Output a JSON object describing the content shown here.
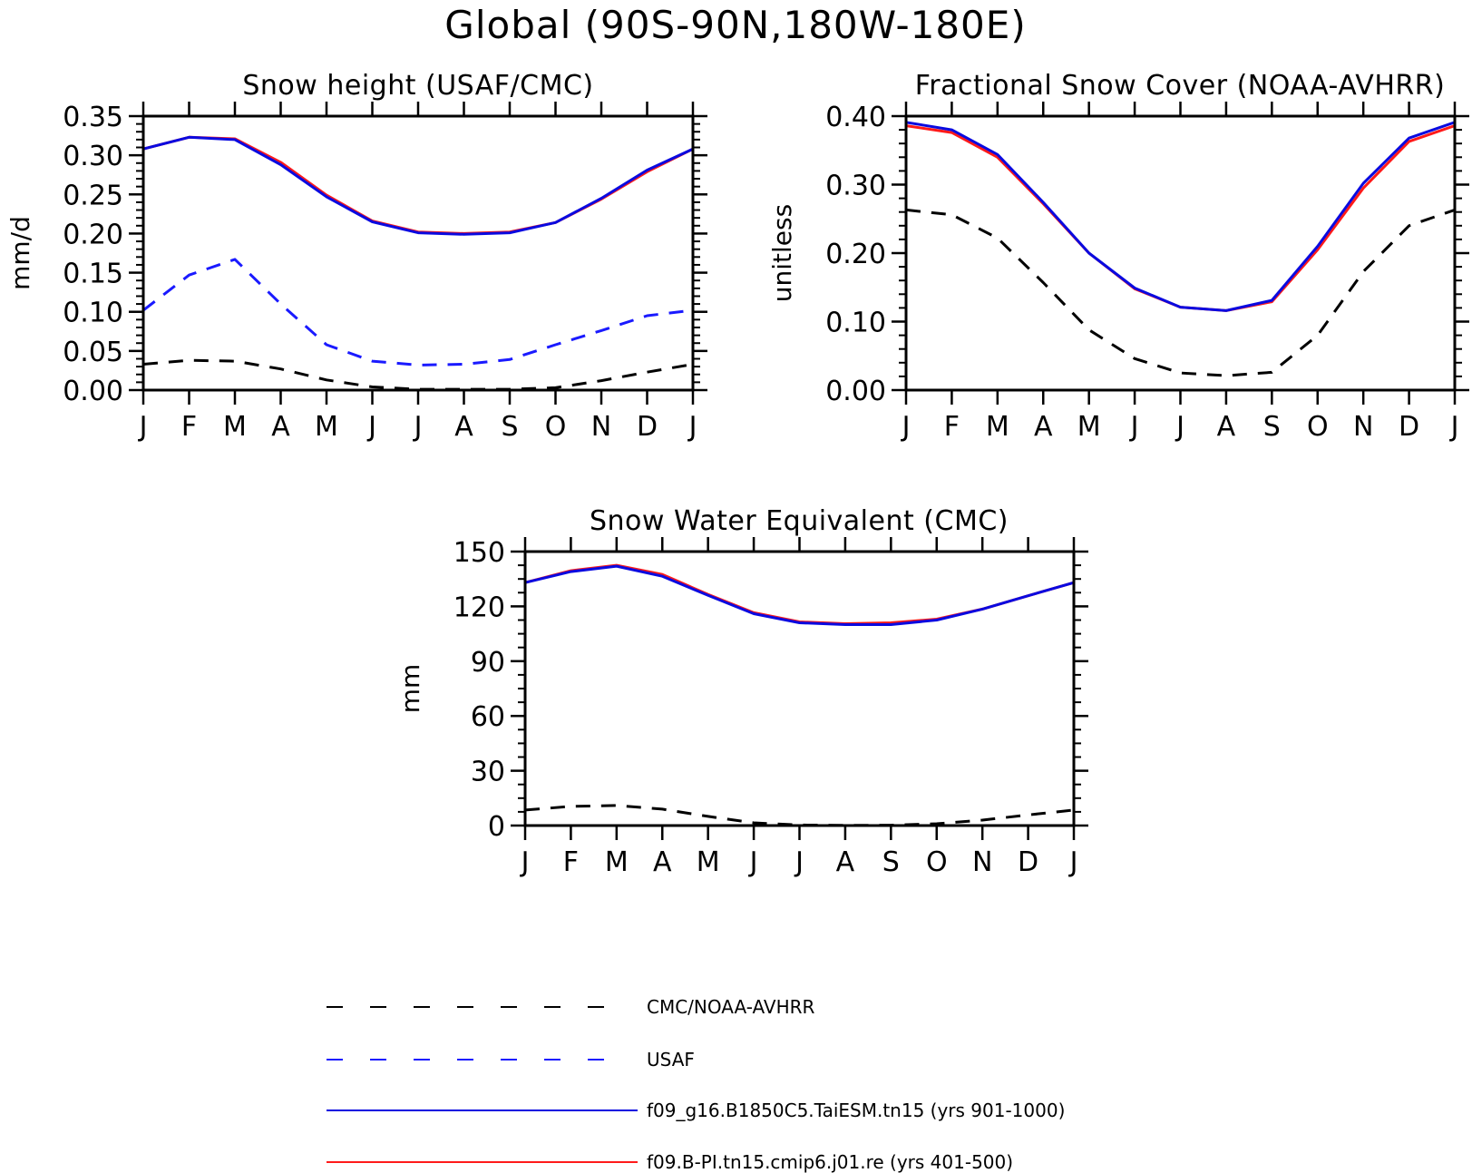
{
  "figure_title": "Global (90S-90N,180W-180E)",
  "months": [
    "J",
    "F",
    "M",
    "A",
    "M",
    "J",
    "J",
    "A",
    "S",
    "O",
    "N",
    "D",
    "J"
  ],
  "colors": {
    "obs": "#000000",
    "usaf": "#1a1aff",
    "model1": "#0a0ae0",
    "model2": "#ff1a1a"
  },
  "legend": [
    {
      "key": "obs",
      "label": "CMC/NOAA-AVHRR",
      "color": "#000000",
      "style": "dashed"
    },
    {
      "key": "usaf",
      "label": "USAF",
      "color": "#1a1aff",
      "style": "dashed"
    },
    {
      "key": "model1",
      "label": "f09_g16.B1850C5.TaiESM.tn15 (yrs 901-1000)",
      "color": "#0a0ae0",
      "style": "solid"
    },
    {
      "key": "model2",
      "label": "f09.B-PI.tn15.cmip6.j01.re (yrs 401-500)",
      "color": "#ff1a1a",
      "style": "solid"
    }
  ],
  "chart_data": [
    {
      "type": "line",
      "title": "Snow height (USAF/CMC)",
      "ylabel": "mm/d",
      "ylim": [
        0,
        0.35
      ],
      "yticks": [
        "0.00",
        "0.05",
        "0.10",
        "0.15",
        "0.20",
        "0.25",
        "0.30",
        "0.35"
      ],
      "yticks_values": [
        0,
        0.05,
        0.1,
        0.15,
        0.2,
        0.25,
        0.3,
        0.35
      ],
      "categories": [
        "J",
        "F",
        "M",
        "A",
        "M",
        "J",
        "J",
        "A",
        "S",
        "O",
        "N",
        "D",
        "J"
      ],
      "series": [
        {
          "name": "CMC/NOAA-AVHRR",
          "key": "obs",
          "style": "dashed",
          "values": [
            0.033,
            0.038,
            0.037,
            0.027,
            0.013,
            0.004,
            0.001,
            0.001,
            0.001,
            0.003,
            0.012,
            0.023,
            0.033
          ]
        },
        {
          "name": "USAF",
          "key": "usaf",
          "style": "dashed",
          "values": [
            0.102,
            0.147,
            0.167,
            0.11,
            0.058,
            0.037,
            0.032,
            0.033,
            0.039,
            0.058,
            0.076,
            0.095,
            0.102
          ]
        },
        {
          "name": "f09.B-PI.tn15.cmip6.j01.re (yrs 401-500)",
          "key": "model2",
          "style": "solid",
          "values": [
            0.308,
            0.323,
            0.321,
            0.291,
            0.249,
            0.216,
            0.202,
            0.2,
            0.202,
            0.214,
            0.244,
            0.279,
            0.308
          ]
        },
        {
          "name": "f09_g16.B1850C5.TaiESM.tn15 (yrs 901-1000)",
          "key": "model1",
          "style": "solid",
          "values": [
            0.308,
            0.323,
            0.32,
            0.288,
            0.247,
            0.215,
            0.201,
            0.199,
            0.201,
            0.214,
            0.245,
            0.281,
            0.308
          ]
        }
      ]
    },
    {
      "type": "line",
      "title": "Fractional Snow Cover (NOAA-AVHRR)",
      "ylabel": "unitless",
      "ylim": [
        0,
        0.4
      ],
      "yticks": [
        "0.00",
        "0.10",
        "0.20",
        "0.30",
        "0.40"
      ],
      "yticks_values": [
        0,
        0.1,
        0.2,
        0.3,
        0.4
      ],
      "categories": [
        "J",
        "F",
        "M",
        "A",
        "M",
        "J",
        "J",
        "A",
        "S",
        "O",
        "N",
        "D",
        "J"
      ],
      "series": [
        {
          "name": "CMC/NOAA-AVHRR",
          "key": "obs",
          "style": "dashed",
          "values": [
            0.263,
            0.256,
            0.222,
            0.157,
            0.088,
            0.046,
            0.025,
            0.021,
            0.026,
            0.08,
            0.173,
            0.24,
            0.263
          ]
        },
        {
          "name": "f09.B-PI.tn15.cmip6.j01.re (yrs 401-500)",
          "key": "model2",
          "style": "solid",
          "values": [
            0.386,
            0.376,
            0.34,
            0.272,
            0.2,
            0.148,
            0.121,
            0.116,
            0.129,
            0.205,
            0.295,
            0.363,
            0.386
          ]
        },
        {
          "name": "f09_g16.B1850C5.TaiESM.tn15 (yrs 901-1000)",
          "key": "model1",
          "style": "solid",
          "values": [
            0.391,
            0.38,
            0.344,
            0.274,
            0.2,
            0.149,
            0.121,
            0.116,
            0.131,
            0.21,
            0.302,
            0.368,
            0.391
          ]
        }
      ]
    },
    {
      "type": "line",
      "title": "Snow Water Equivalent (CMC)",
      "ylabel": "mm",
      "ylim": [
        0,
        150
      ],
      "yticks": [
        "0",
        "30",
        "60",
        "90",
        "120",
        "150"
      ],
      "yticks_values": [
        0,
        30,
        60,
        90,
        120,
        150
      ],
      "categories": [
        "J",
        "F",
        "M",
        "A",
        "M",
        "J",
        "J",
        "A",
        "S",
        "O",
        "N",
        "D",
        "J"
      ],
      "series": [
        {
          "name": "CMC/NOAA-AVHRR",
          "key": "obs",
          "style": "dashed",
          "values": [
            8.5,
            10.5,
            11.0,
            9.0,
            5.0,
            1.5,
            0.3,
            0.1,
            0.2,
            1.0,
            3.0,
            5.8,
            8.5
          ]
        },
        {
          "name": "f09.B-PI.tn15.cmip6.j01.re (yrs 401-500)",
          "key": "model2",
          "style": "solid",
          "values": [
            133,
            139.5,
            142.5,
            137.5,
            126.5,
            116.5,
            111.5,
            110.5,
            111,
            113,
            118.5,
            125.8,
            133
          ]
        },
        {
          "name": "f09_g16.B1850C5.TaiESM.tn15 (yrs 901-1000)",
          "key": "model1",
          "style": "solid",
          "values": [
            133,
            139,
            142,
            136.5,
            126,
            116,
            111,
            110,
            110,
            112.5,
            118.5,
            125.8,
            133
          ]
        }
      ]
    }
  ]
}
